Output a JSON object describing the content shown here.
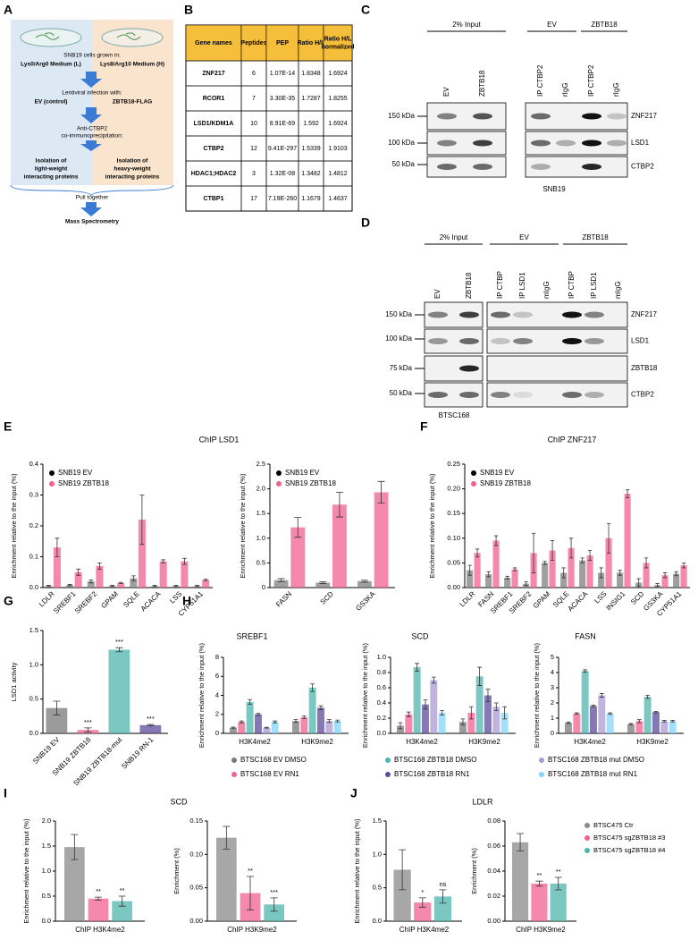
{
  "panels": [
    "A",
    "B",
    "C",
    "D",
    "E",
    "F",
    "G",
    "H",
    "I",
    "J"
  ],
  "diagram": {
    "grown_in": "SNB19 cells grown in:",
    "medium_l": "Lys0/Arg0 Medium (L)",
    "medium_h": "Lys8/Arg10 Medium (H)",
    "infection": "Lentiviral infection with:",
    "ev": "EV (control)",
    "zbtb18": "ZBTB18-FLAG",
    "coip": [
      "Anti-CTBP2",
      "co-immunoprecipitation:"
    ],
    "light": [
      "Isolation of",
      "light-weight",
      "interacting proteins"
    ],
    "heavy": [
      "Isolation of",
      "heavy-weight",
      "interacting proteins"
    ],
    "pull": "Pull together",
    "ms": "Mass Spectrometry"
  },
  "table": {
    "header": [
      [
        "Gene names"
      ],
      [
        "Peptides"
      ],
      [
        "PEP"
      ],
      [
        "Ratio H/L"
      ],
      [
        "Ratio H/L",
        "normalized"
      ]
    ],
    "rows": [
      [
        "ZNF217",
        "6",
        "1.07E-14",
        "1.8348",
        "1.6924"
      ],
      [
        "RCOR1",
        "7",
        "3.30E-35",
        "1.7287",
        "1.8255"
      ],
      [
        "LSD1/KDM1A",
        "10",
        "8.91E-69",
        "1.592",
        "1.6924"
      ],
      [
        "CTBP2",
        "12",
        "9.41E-297",
        "1.5339",
        "1.9103"
      ],
      [
        "HDAC1;HDAC2",
        "3",
        "1.32E-08",
        "1.3482",
        "1.4812"
      ],
      [
        "CTBP1",
        "17",
        "7.19E-260",
        "1.1679",
        "1.4637"
      ]
    ]
  },
  "blot_c": {
    "groups": [
      "2% Input",
      "EV",
      "ZBTB18"
    ],
    "lanes": [
      "EV",
      "ZBTB18",
      "IP CTBP2",
      "rIgG",
      "IP CTBP2",
      "rIgG"
    ],
    "markers": [
      "150 kDa",
      "100 kDa",
      "50 kDa"
    ],
    "proteins": [
      "ZNF217",
      "LSD1",
      "CTBP2"
    ],
    "cell": "SNB19"
  },
  "blot_d": {
    "groups": [
      "2% Input",
      "EV",
      "ZBTB18"
    ],
    "lanes": [
      "EV",
      "ZBTB18",
      "IP CTBP",
      "IP LSD1",
      "mIgG",
      "IP CTBP",
      "IP LSD1",
      "mIgG"
    ],
    "markers": [
      "150 kDa",
      "100 kDa",
      "75 kDa",
      "50 kDa"
    ],
    "proteins": [
      "ZNF217",
      "LSD1",
      "ZBTB18",
      "CTBP2"
    ],
    "cell": "BTSC168"
  },
  "chart_data": [
    {
      "type": "bar",
      "title": "ChIP LSD1",
      "ylabel": "Enrichment relative to the input (%)",
      "categories": [
        "LDLR",
        "SREBF1",
        "SREBF2",
        "GPAM",
        "SQLE",
        "ACACA",
        "LSS",
        "CYP51A1"
      ],
      "series": [
        {
          "name": "SNB19 EV",
          "color": "#7f7f7f",
          "values": [
            0.005,
            0.008,
            0.02,
            0.005,
            0.03,
            0.005,
            0.005,
            0.005
          ],
          "errors": [
            0.002,
            0.002,
            0.005,
            0.002,
            0.008,
            0.002,
            0.002,
            0.002
          ]
        },
        {
          "name": "SNB19 ZBTB18",
          "color": "#f06292",
          "values": [
            0.13,
            0.05,
            0.07,
            0.015,
            0.22,
            0.085,
            0.085,
            0.025
          ],
          "errors": [
            0.03,
            0.01,
            0.01,
            0.002,
            0.08,
            0.005,
            0.01,
            0.003
          ]
        }
      ],
      "ylim": [
        0,
        0.4
      ],
      "yticks": [
        {
          "value": 0,
          "label": "0.0"
        },
        0.1,
        0.2,
        0.3,
        0.4
      ],
      "legend": "upper left"
    },
    {
      "type": "bar",
      "ylabel": "Enrichment relative to the input (%)",
      "categories": [
        "FASN",
        "SCD",
        "GS3KA"
      ],
      "series": [
        {
          "name": "SNB19 EV",
          "color": "#7f7f7f",
          "values": [
            0.15,
            0.1,
            0.13
          ],
          "errors": [
            0.03,
            0.02,
            0.02
          ]
        },
        {
          "name": "SNB19 ZBTB18",
          "color": "#f06292",
          "values": [
            1.22,
            1.68,
            1.93
          ],
          "errors": [
            0.2,
            0.25,
            0.22
          ]
        }
      ],
      "ylim": [
        0,
        2.5
      ],
      "yticks": [
        0,
        0.5,
        {
          "value": 1,
          "label": "1.0"
        },
        1.5,
        {
          "value": 2,
          "label": "2.0"
        },
        2.5
      ],
      "legend": "upper left"
    },
    {
      "type": "bar",
      "title": "ChIP ZNF217",
      "ylabel": "Enrichment relative to the input (%)",
      "categories": [
        "LDLR",
        "FASN",
        "SREBF1",
        "SREBF2",
        "GPAM",
        "SQLE",
        "ACACA",
        "LSS",
        "INSIG1",
        "SCD",
        "GS3KA",
        "CYP51A1"
      ],
      "series": [
        {
          "name": "SNB19 EV",
          "color": "#7f7f7f",
          "values": [
            0.035,
            0.027,
            0.02,
            0.008,
            0.05,
            0.03,
            0.055,
            0.03,
            0.03,
            0.01,
            0.005,
            0.028
          ],
          "errors": [
            0.01,
            0.005,
            0.003,
            0.004,
            0.003,
            0.01,
            0.005,
            0.01,
            0.005,
            0.008,
            0.003,
            0.004
          ]
        },
        {
          "name": "SNB19 ZBTB18",
          "color": "#f06292",
          "values": [
            0.07,
            0.095,
            0.037,
            0.07,
            0.075,
            0.08,
            0.065,
            0.1,
            0.19,
            0.05,
            0.025,
            0.045
          ],
          "errors": [
            0.008,
            0.01,
            0.003,
            0.04,
            0.02,
            0.02,
            0.01,
            0.03,
            0.008,
            0.01,
            0.005,
            0.005
          ]
        }
      ],
      "ylim": [
        0,
        0.25
      ],
      "yticks": [
        {
          "value": 0,
          "label": "0.00"
        },
        0.05,
        {
          "value": 0.1,
          "label": "0.10"
        },
        0.15,
        {
          "value": 0.2,
          "label": "0.20"
        },
        0.25
      ],
      "legend": "upper left"
    },
    {
      "type": "bar",
      "ylabel": "LSD1 activity",
      "categories": [
        "SNB19 EV",
        "SNB19 ZBTB18",
        "SNB19 ZBTB18-mut",
        "SNB19 RN-1"
      ],
      "series": [
        {
          "colors": [
            "#7a7a7a",
            "#f06292",
            "#4db6ac",
            "#5e4b9c"
          ],
          "values": [
            0.37,
            0.05,
            1.22,
            0.12
          ],
          "errors": [
            0.1,
            0.03,
            0.03,
            0.01
          ],
          "labels": [
            null,
            "***",
            "***",
            "***"
          ]
        }
      ],
      "ylim": [
        0,
        1.5
      ],
      "yticks": [
        {
          "value": 0,
          "label": "0.0"
        },
        0.5,
        {
          "value": 1,
          "label": "1.0"
        },
        1.5
      ]
    },
    {
      "type": "bar",
      "title": "SREBF1",
      "ylabel": "Enrichment relative to the input (%)",
      "categories": [
        "H3K4me2",
        "H3K9me2"
      ],
      "series": [
        {
          "name": "BTSC168 EV DMSO",
          "color": "#7a7a7a",
          "values": [
            0.6,
            1.3
          ],
          "errors": [
            0.06,
            0.15
          ]
        },
        {
          "name": "BTSC168 EV RN1",
          "color": "#f06292",
          "values": [
            1.2,
            1.7
          ],
          "errors": [
            0.1,
            0.15
          ]
        },
        {
          "name": "BTSC168 ZBTB18 DMSO",
          "color": "#4db6ac",
          "values": [
            3.3,
            4.8
          ],
          "errors": [
            0.25,
            0.4
          ]
        },
        {
          "name": "BTSC168 ZBTB18 RN1",
          "color": "#5e4b9c",
          "values": [
            2.0,
            2.7
          ],
          "errors": [
            0.1,
            0.2
          ]
        },
        {
          "name": "BTSC168 ZBTB18 mut DMSO",
          "color": "#a99bd6",
          "values": [
            0.6,
            1.3
          ],
          "errors": [
            0.05,
            0.15
          ]
        },
        {
          "name": "BTSC168 ZBTB18 mut RN1",
          "color": "#81d4fa",
          "values": [
            1.2,
            1.3
          ],
          "errors": [
            0.1,
            0.1
          ]
        }
      ],
      "ylim": [
        0,
        8
      ],
      "yticks": [
        0,
        2,
        4,
        6,
        8
      ],
      "legend": "below"
    },
    {
      "type": "bar",
      "title": "SCD",
      "ylabel": "Enrichment relative to the input (%)",
      "categories": [
        "H3K4me2",
        "H3K9me2"
      ],
      "series": [
        {
          "color": "#7a7a7a",
          "values": [
            0.1,
            0.15
          ],
          "errors": [
            0.04,
            0.04
          ]
        },
        {
          "color": "#f06292",
          "values": [
            0.25,
            0.27
          ],
          "errors": [
            0.03,
            0.08
          ]
        },
        {
          "color": "#4db6ac",
          "values": [
            0.87,
            0.75
          ],
          "errors": [
            0.05,
            0.12
          ]
        },
        {
          "color": "#5e4b9c",
          "values": [
            0.38,
            0.5
          ],
          "errors": [
            0.06,
            0.08
          ]
        },
        {
          "color": "#a99bd6",
          "values": [
            0.7,
            0.35
          ],
          "errors": [
            0.04,
            0.05
          ]
        },
        {
          "color": "#81d4fa",
          "values": [
            0.27,
            0.27
          ],
          "errors": [
            0.03,
            0.08
          ]
        }
      ],
      "ylim": [
        0,
        1
      ],
      "yticks": [
        {
          "value": 0,
          "label": "0.0"
        },
        0.2,
        0.4,
        0.6,
        0.8,
        {
          "value": 1,
          "label": "1.0"
        }
      ]
    },
    {
      "type": "bar",
      "title": "FASN",
      "ylabel": "Enrichment relative to the input (%)",
      "categories": [
        "H3K4me2",
        "H3K9me2"
      ],
      "series": [
        {
          "color": "#7a7a7a",
          "values": [
            0.7,
            0.6
          ],
          "errors": [
            0.05,
            0.05
          ]
        },
        {
          "color": "#f06292",
          "values": [
            1.3,
            0.8
          ],
          "errors": [
            0.05,
            0.1
          ]
        },
        {
          "color": "#4db6ac",
          "values": [
            4.1,
            2.4
          ],
          "errors": [
            0.08,
            0.1
          ]
        },
        {
          "color": "#5e4b9c",
          "values": [
            1.8,
            1.4
          ],
          "errors": [
            0.05,
            0.05
          ]
        },
        {
          "color": "#a99bd6",
          "values": [
            2.5,
            0.8
          ],
          "errors": [
            0.12,
            0.05
          ]
        },
        {
          "color": "#81d4fa",
          "values": [
            1.3,
            0.8
          ],
          "errors": [
            0.05,
            0.05
          ]
        }
      ],
      "ylim": [
        0,
        5
      ],
      "yticks": [
        0,
        1,
        2,
        3,
        4,
        5
      ]
    },
    {
      "type": "bar",
      "title": "SCD",
      "ylabel": "Enrichment relative to the input (%)",
      "categories": [
        "ChIP H3K4me2"
      ],
      "series": [
        {
          "color": "#8a8a8a",
          "values": [
            1.48
          ],
          "errors": [
            0.25
          ]
        },
        {
          "color": "#f06292",
          "values": [
            0.45
          ],
          "errors": [
            0.03
          ],
          "labels": [
            "**"
          ]
        },
        {
          "color": "#4db6ac",
          "values": [
            0.4
          ],
          "errors": [
            0.1
          ],
          "labels": [
            "**"
          ]
        }
      ],
      "ylim": [
        0,
        2
      ],
      "yticks": [
        {
          "value": 0,
          "label": "0.0"
        },
        0.5,
        {
          "value": 1,
          "label": "1.0"
        },
        1.5,
        {
          "value": 2,
          "label": "2.0"
        }
      ]
    },
    {
      "type": "bar",
      "ylabel": "Enrichment (%)",
      "categories": [
        "ChIP H3K9me2"
      ],
      "series": [
        {
          "color": "#8a8a8a",
          "values": [
            0.125
          ],
          "errors": [
            0.017
          ]
        },
        {
          "color": "#f06292",
          "values": [
            0.042
          ],
          "errors": [
            0.025
          ],
          "labels": [
            "**"
          ]
        },
        {
          "color": "#4db6ac",
          "values": [
            0.025
          ],
          "errors": [
            0.01
          ],
          "labels": [
            "***"
          ]
        }
      ],
      "ylim": [
        0,
        0.15
      ],
      "yticks": [
        {
          "value": 0,
          "label": "0.00"
        },
        0.05,
        {
          "value": 0.1,
          "label": "0.10"
        },
        0.15
      ]
    },
    {
      "type": "bar",
      "title": "LDLR",
      "ylabel": "Enrichment relative to the input (%)",
      "categories": [
        "ChIP H3K4me2"
      ],
      "series": [
        {
          "color": "#8a8a8a",
          "values": [
            0.77
          ],
          "errors": [
            0.3
          ]
        },
        {
          "color": "#f06292",
          "values": [
            0.28
          ],
          "errors": [
            0.07
          ],
          "labels": [
            "*"
          ]
        },
        {
          "color": "#4db6ac",
          "values": [
            0.37
          ],
          "errors": [
            0.1
          ],
          "labels": [
            "ns"
          ]
        }
      ],
      "ylim": [
        0,
        1.5
      ],
      "yticks": [
        {
          "value": 0,
          "label": "0.0"
        },
        0.5,
        {
          "value": 1,
          "label": "1.0"
        },
        1.5
      ]
    },
    {
      "type": "bar",
      "ylabel": "Enrichment (%)",
      "categories": [
        "ChIP H3K9me2"
      ],
      "series": [
        {
          "name": "BTSC475 Ctr",
          "color": "#8a8a8a",
          "values": [
            0.063
          ],
          "errors": [
            0.007
          ]
        },
        {
          "name": "BTSC475 sgZBTB18 #3",
          "color": "#f06292",
          "values": [
            0.03
          ],
          "errors": [
            0.002
          ],
          "labels": [
            "**"
          ]
        },
        {
          "name": "BTSC475 sgZBTB18 #4",
          "color": "#4db6ac",
          "values": [
            0.03
          ],
          "errors": [
            0.005
          ],
          "labels": [
            "**"
          ]
        }
      ],
      "ylim": [
        0,
        0.08
      ],
      "yticks": [
        {
          "value": 0,
          "label": "0.00"
        },
        0.02,
        0.04,
        0.06,
        0.08
      ],
      "legend": "right"
    }
  ]
}
